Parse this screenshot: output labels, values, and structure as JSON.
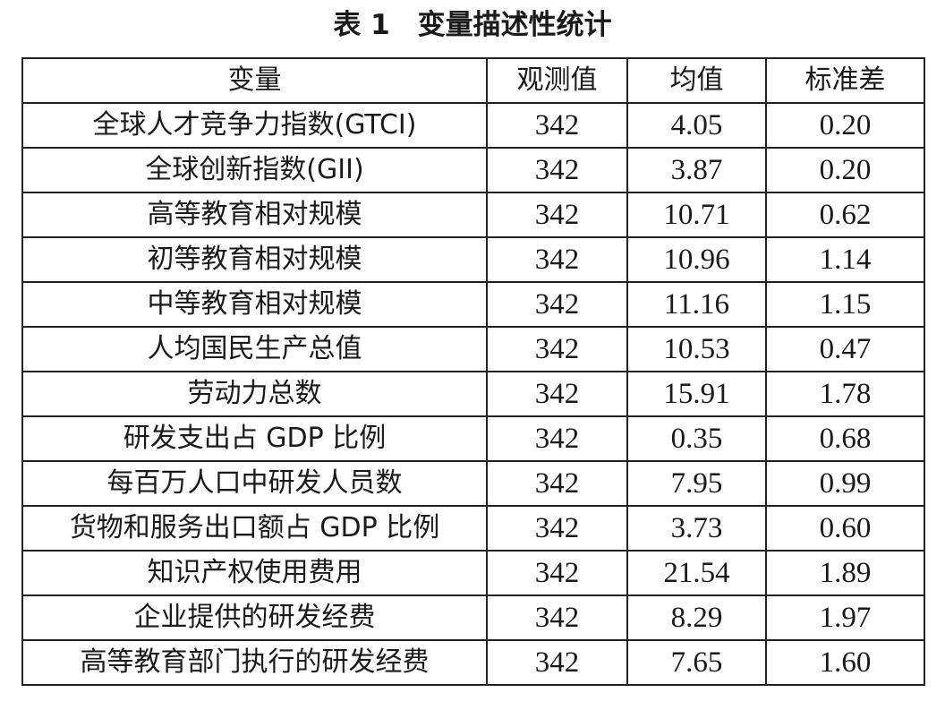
{
  "caption": "表 1　变量描述性统计",
  "table": {
    "headers": [
      "变量",
      "观测值",
      "均值",
      "标准差"
    ],
    "rows": [
      {
        "variable": "全球人才竞争力指数(GTCI)",
        "obs": "342",
        "mean": "4.05",
        "sd": "0.20"
      },
      {
        "variable": "全球创新指数(GII)",
        "obs": "342",
        "mean": "3.87",
        "sd": "0.20"
      },
      {
        "variable": "高等教育相对规模",
        "obs": "342",
        "mean": "10.71",
        "sd": "0.62"
      },
      {
        "variable": "初等教育相对规模",
        "obs": "342",
        "mean": "10.96",
        "sd": "1.14"
      },
      {
        "variable": "中等教育相对规模",
        "obs": "342",
        "mean": "11.16",
        "sd": "1.15"
      },
      {
        "variable": "人均国民生产总值",
        "obs": "342",
        "mean": "10.53",
        "sd": "0.47"
      },
      {
        "variable": "劳动力总数",
        "obs": "342",
        "mean": "15.91",
        "sd": "1.78"
      },
      {
        "variable": "研发支出占 GDP 比例",
        "obs": "342",
        "mean": "0.35",
        "sd": "0.68"
      },
      {
        "variable": "每百万人口中研发人员数",
        "obs": "342",
        "mean": "7.95",
        "sd": "0.99"
      },
      {
        "variable": "货物和服务出口额占 GDP 比例",
        "obs": "342",
        "mean": "3.73",
        "sd": "0.60"
      },
      {
        "variable": "知识产权使用费用",
        "obs": "342",
        "mean": "21.54",
        "sd": "1.89"
      },
      {
        "variable": "企业提供的研发经费",
        "obs": "342",
        "mean": "8.29",
        "sd": "1.97"
      },
      {
        "variable": "高等教育部门执行的研发经费",
        "obs": "342",
        "mean": "7.65",
        "sd": "1.60"
      }
    ]
  }
}
